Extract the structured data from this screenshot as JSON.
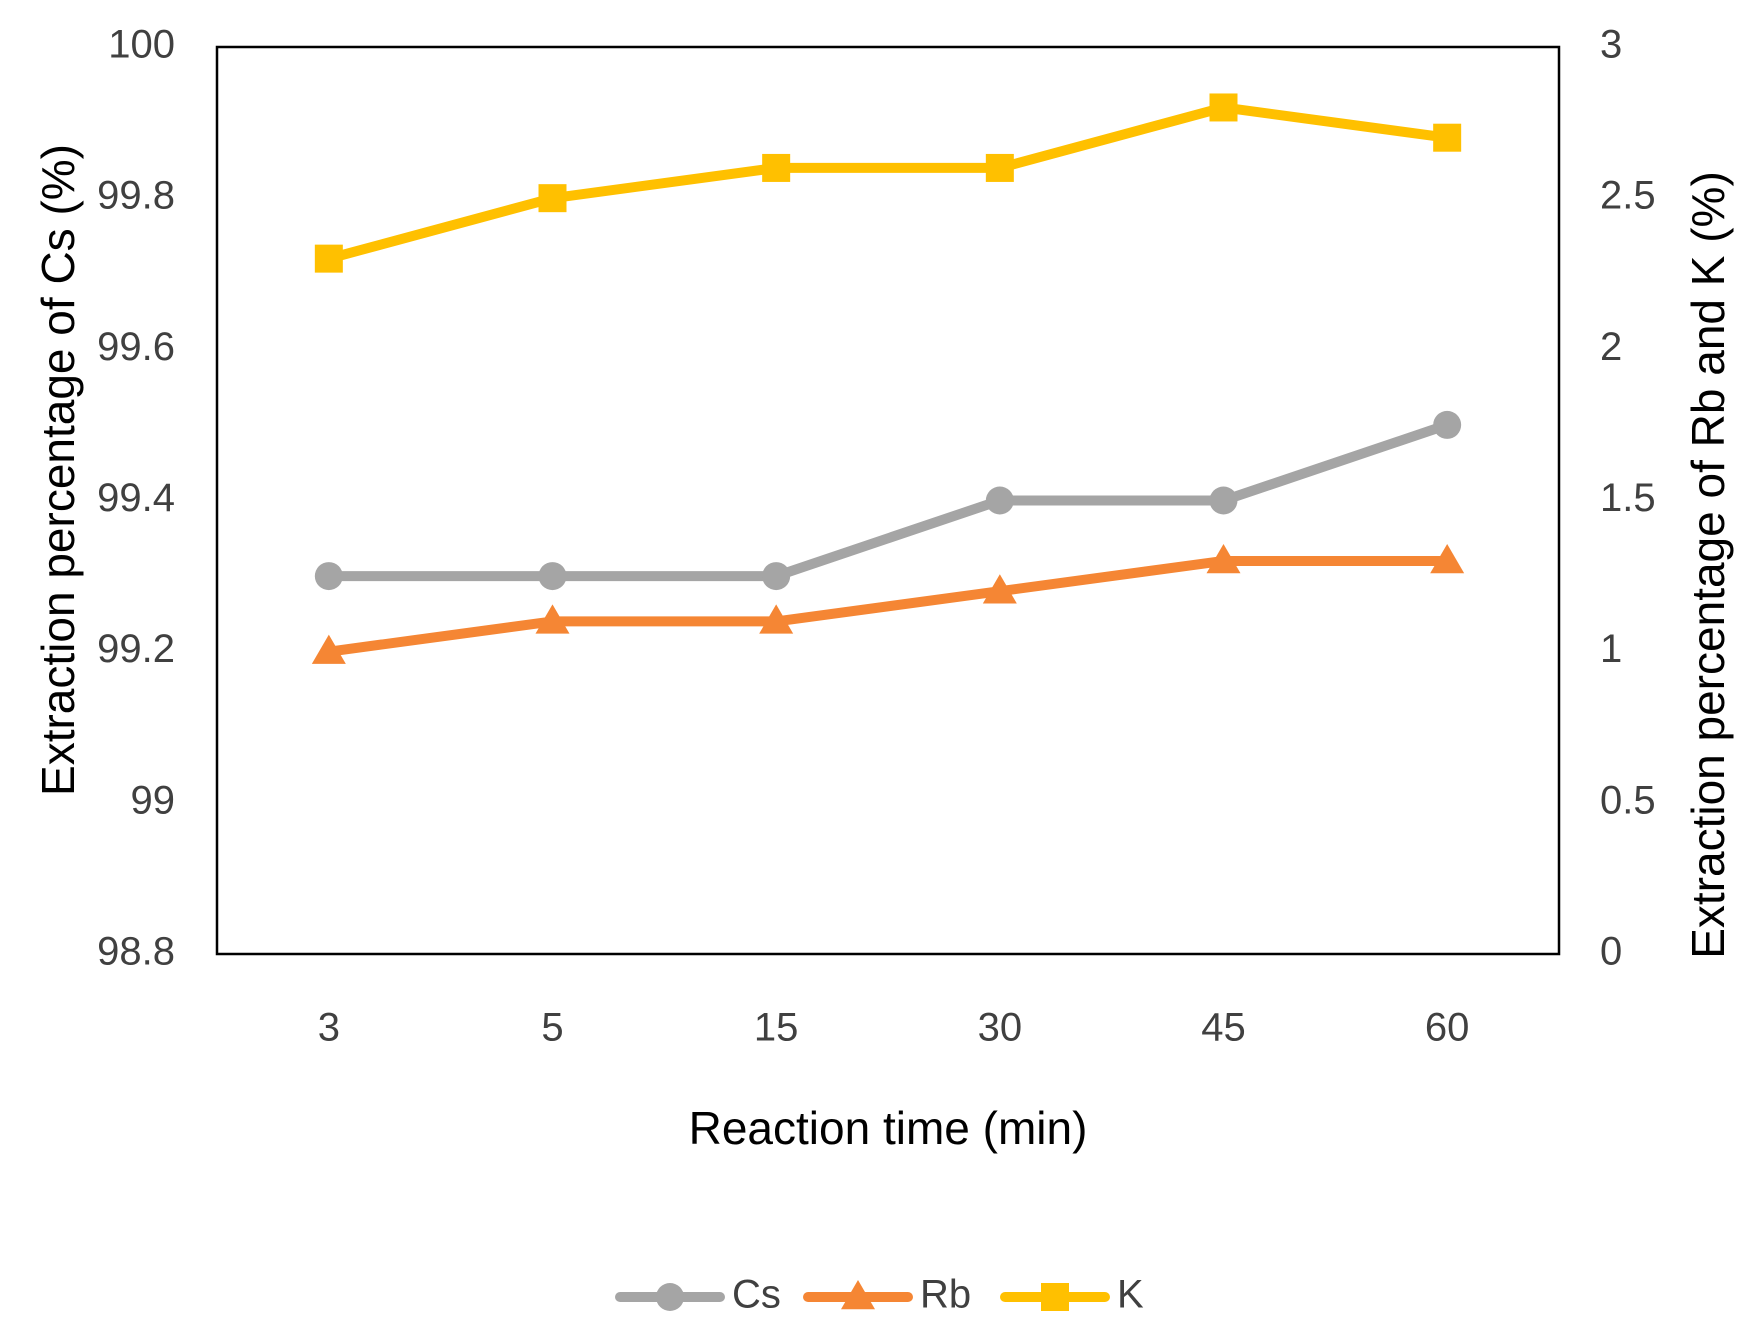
{
  "chart_data": {
    "type": "line",
    "categories": [
      "3",
      "5",
      "15",
      "30",
      "45",
      "60"
    ],
    "xlabel": "Reaction time (min)",
    "ylabel": "Extraction percentage of Cs (%)",
    "y2label": "Extraction percentage of Rb and K (%)",
    "ylim": [
      98.8,
      100
    ],
    "yticks": [
      "98.8",
      "99",
      "99.2",
      "99.4",
      "99.6",
      "99.8",
      "100"
    ],
    "ytick_values": [
      98.8,
      99.0,
      99.2,
      99.4,
      99.6,
      99.8,
      100.0
    ],
    "y2lim": [
      0,
      3
    ],
    "y2ticks": [
      "0",
      "0.5",
      "1",
      "1.5",
      "2",
      "2.5",
      "3"
    ],
    "y2tick_values": [
      0,
      0.5,
      1,
      1.5,
      2,
      2.5,
      3
    ],
    "grid": false,
    "legend_position": "bottom-center",
    "series": [
      {
        "name": "Cs",
        "axis": "left",
        "marker": "circle",
        "color": "#A5A5A5",
        "values": [
          99.3,
          99.3,
          99.3,
          99.4,
          99.4,
          99.5
        ]
      },
      {
        "name": "Rb",
        "axis": "right",
        "marker": "triangle",
        "color": "#F58634",
        "values": [
          1.0,
          1.1,
          1.1,
          1.2,
          1.3,
          1.3
        ]
      },
      {
        "name": "K",
        "axis": "right",
        "marker": "square",
        "color": "#FFC000",
        "values": [
          2.3,
          2.5,
          2.6,
          2.6,
          2.8,
          2.7
        ]
      }
    ]
  }
}
